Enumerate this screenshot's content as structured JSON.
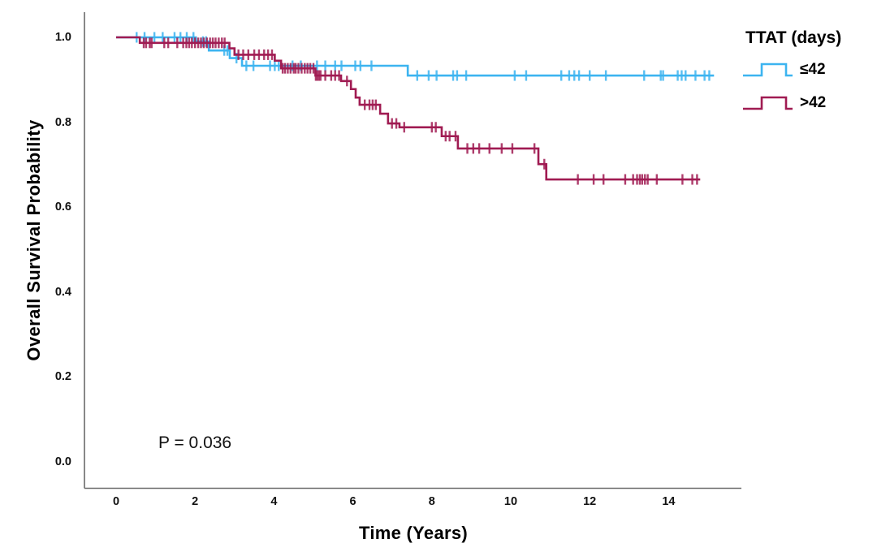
{
  "figure": {
    "background": "#ffffff",
    "axis_color": "#6b6b6b",
    "text_color": "#000000"
  },
  "annotation": {
    "p_value": "P = 0.036"
  },
  "legend": {
    "title": "TTAT (days)",
    "position": "top-right",
    "entries": [
      {
        "label": "≤42",
        "color": "#3CB4F0"
      },
      {
        "label": ">42",
        "color": "#A01B52"
      }
    ]
  },
  "chart_data": {
    "type": "line",
    "subtype": "kaplan-meier-step",
    "title": "",
    "xlabel": "Time (Years)",
    "ylabel": "Overall Survival Probability",
    "xlim": [
      -0.8,
      15.85
    ],
    "ylim": [
      -0.065,
      1.01
    ],
    "grid": false,
    "x_ticks": [
      {
        "value": 0,
        "label": "0"
      },
      {
        "value": 2,
        "label": "2"
      },
      {
        "value": 4,
        "label": "4"
      },
      {
        "value": 6,
        "label": "6"
      },
      {
        "value": 8,
        "label": "8"
      },
      {
        "value": 10,
        "label": "10"
      },
      {
        "value": 12,
        "label": "12"
      },
      {
        "value": 14,
        "label": "14"
      }
    ],
    "y_ticks": [
      {
        "value": 0.0,
        "label": "0.0"
      },
      {
        "value": 0.2,
        "label": "0.2"
      },
      {
        "value": 0.4,
        "label": "0.4"
      },
      {
        "value": 0.6,
        "label": "0.6"
      },
      {
        "value": 0.8,
        "label": "0.8"
      },
      {
        "value": 1.0,
        "label": "1.0"
      }
    ],
    "series": [
      {
        "name": "≤42",
        "color": "#3CB4F0",
        "end_x": 15.15,
        "steps": [
          [
            0,
            1.0
          ],
          [
            2.02,
            0.99
          ],
          [
            2.35,
            0.969
          ],
          [
            2.88,
            0.951
          ],
          [
            3.19,
            0.933
          ],
          [
            7.39,
            0.91
          ]
        ],
        "censor_times": [
          0.52,
          0.72,
          0.97,
          1.18,
          1.48,
          1.63,
          1.79,
          1.96,
          2.2,
          2.28,
          2.74,
          2.82,
          3.05,
          3.3,
          3.48,
          3.9,
          4.02,
          4.12,
          4.47,
          4.68,
          5.09,
          5.3,
          5.55,
          5.71,
          6.06,
          6.19,
          6.47,
          7.63,
          7.92,
          8.12,
          8.54,
          8.64,
          8.87,
          10.1,
          10.39,
          11.28,
          11.48,
          11.61,
          11.73,
          12.0,
          12.41,
          13.38,
          13.8,
          13.86,
          14.23,
          14.33,
          14.43,
          14.68,
          14.91,
          15.03
        ]
      },
      {
        "name": ">42",
        "color": "#A01B52",
        "end_x": 14.8,
        "steps": [
          [
            0,
            1.0
          ],
          [
            0.6,
            0.987
          ],
          [
            2.87,
            0.974
          ],
          [
            3.0,
            0.959
          ],
          [
            4.02,
            0.945
          ],
          [
            4.18,
            0.927
          ],
          [
            5.05,
            0.91
          ],
          [
            5.7,
            0.897
          ],
          [
            5.95,
            0.878
          ],
          [
            6.07,
            0.858
          ],
          [
            6.17,
            0.841
          ],
          [
            6.69,
            0.82
          ],
          [
            6.89,
            0.797
          ],
          [
            7.18,
            0.788
          ],
          [
            8.25,
            0.767
          ],
          [
            8.66,
            0.738
          ],
          [
            10.7,
            0.701
          ],
          [
            10.9,
            0.665
          ]
        ],
        "censor_times": [
          0.7,
          0.76,
          0.85,
          0.9,
          1.22,
          1.32,
          1.55,
          1.7,
          1.78,
          1.85,
          1.92,
          2.0,
          2.08,
          2.15,
          2.22,
          2.3,
          2.38,
          2.45,
          2.52,
          2.6,
          2.68,
          2.75,
          3.1,
          3.22,
          3.35,
          3.5,
          3.62,
          3.75,
          3.85,
          3.95,
          4.22,
          4.28,
          4.35,
          4.42,
          4.5,
          4.55,
          4.62,
          4.7,
          4.78,
          4.85,
          4.92,
          5.0,
          5.06,
          5.1,
          5.14,
          5.18,
          5.3,
          5.45,
          5.55,
          5.65,
          5.85,
          6.3,
          6.42,
          6.5,
          6.58,
          6.99,
          7.1,
          7.3,
          8.0,
          8.1,
          8.35,
          8.45,
          8.6,
          8.9,
          9.05,
          9.2,
          9.46,
          9.77,
          10.04,
          10.6,
          10.85,
          11.7,
          12.1,
          12.35,
          12.9,
          13.1,
          13.2,
          13.27,
          13.33,
          13.4,
          13.47,
          13.7,
          14.35,
          14.6,
          14.72
        ]
      }
    ]
  }
}
